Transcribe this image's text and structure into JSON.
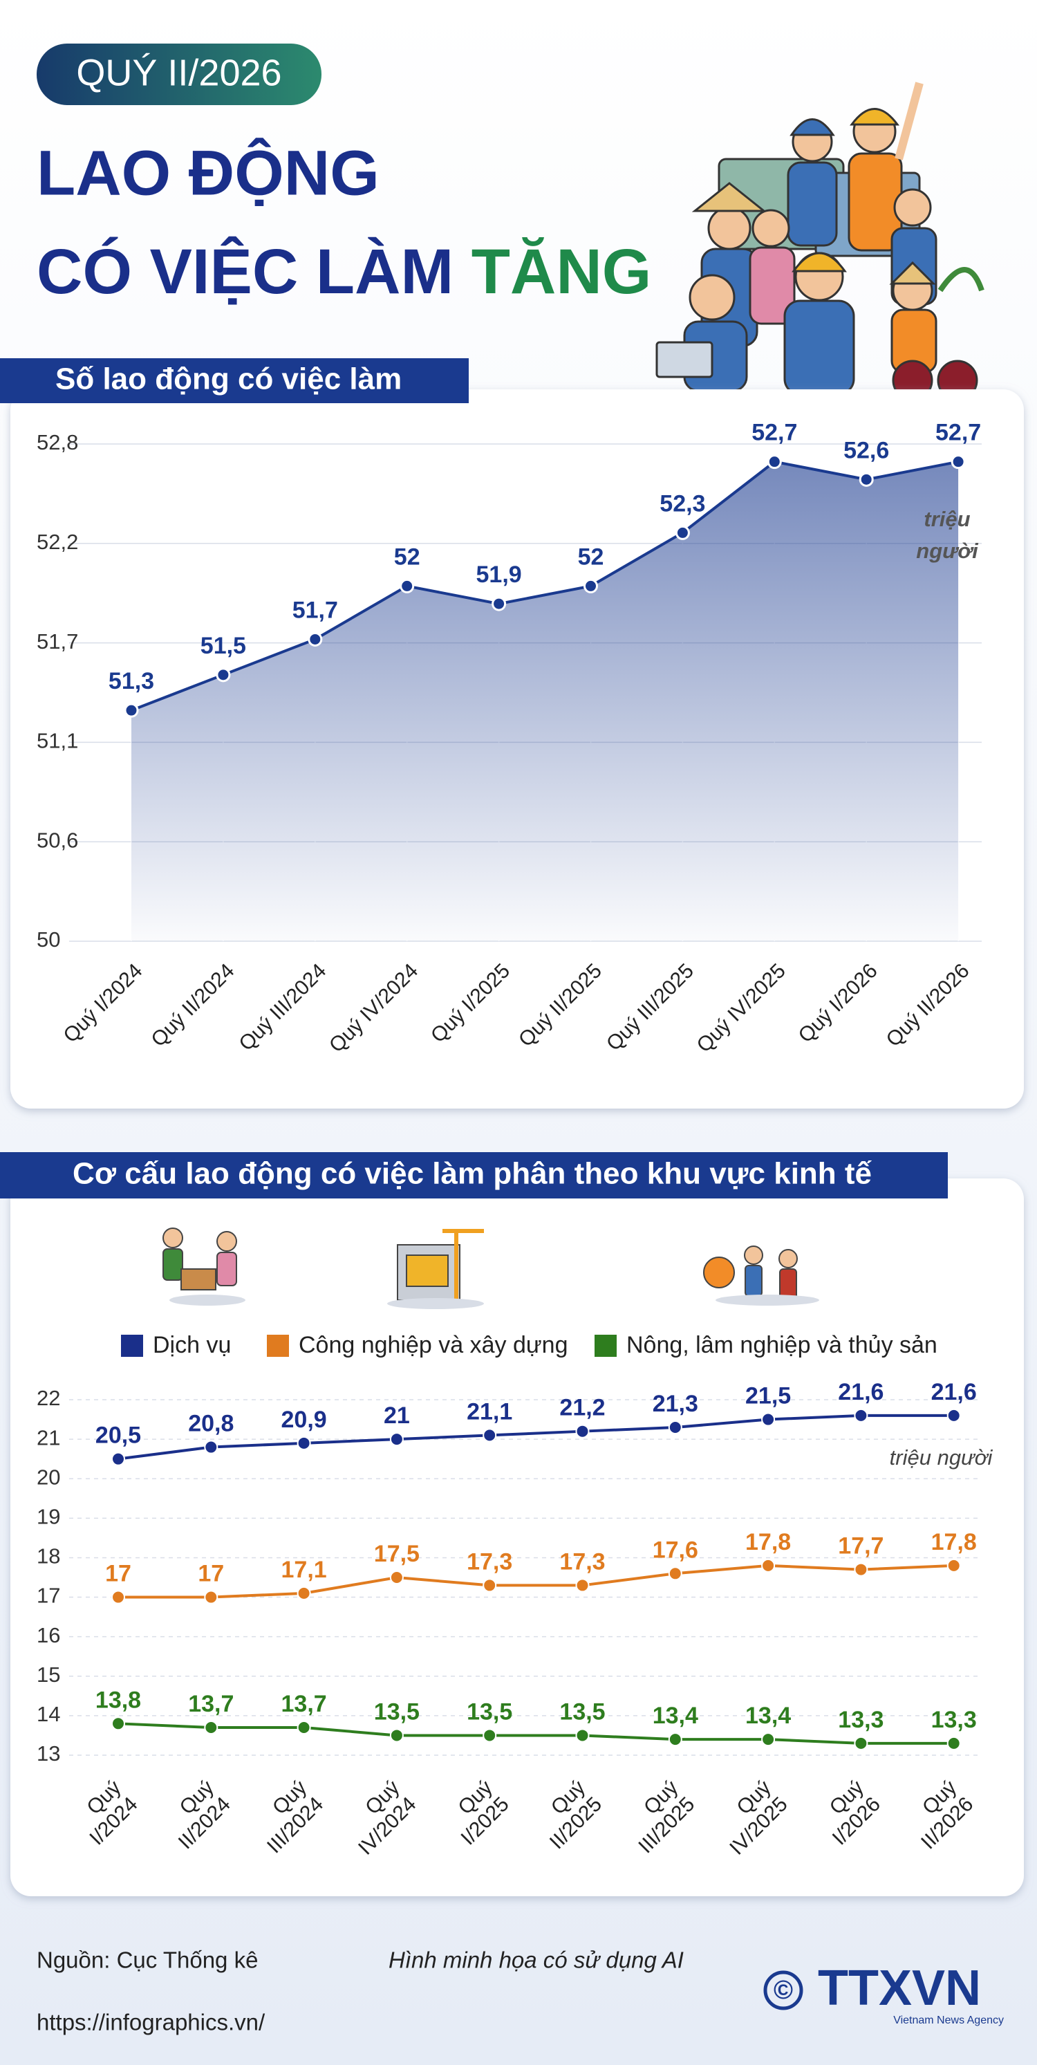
{
  "header": {
    "badge": "QUÝ II/2026",
    "title_line1": "LAO ĐỘNG",
    "title_line2": "CÓ VIỆC LÀM",
    "title_highlight": "TĂNG"
  },
  "chart_data": [
    {
      "type": "area",
      "title": "Số lao động có việc làm",
      "unit": "triệu người",
      "categories": [
        "Quý I/2024",
        "Quý II/2024",
        "Quý III/2024",
        "Quý IV/2024",
        "Quý I/2025",
        "Quý II/2025",
        "Quý III/2025",
        "Quý IV/2025",
        "Quý I/2026",
        "Quý II/2026"
      ],
      "values": [
        51.3,
        51.5,
        51.7,
        52,
        51.9,
        52,
        52.3,
        52.7,
        52.6,
        52.7
      ],
      "value_labels": [
        "51,3",
        "51,5",
        "51,7",
        "52",
        "51,9",
        "52",
        "52,3",
        "52,7",
        "52,6",
        "52,7"
      ],
      "color": "#1a3a8f",
      "ylim": [
        50,
        52.8
      ],
      "yticks": [
        50,
        {
          "value": 50.56,
          "label": "50,6"
        },
        {
          "value": 51.12,
          "label": "51,1"
        },
        {
          "value": 51.68,
          "label": "51,7"
        },
        {
          "value": 52.24,
          "label": "52,2"
        },
        {
          "value": 52.8,
          "label": "52,8"
        }
      ],
      "grid": true
    },
    {
      "type": "line",
      "title": "Cơ cấu lao động có việc làm phân theo khu vực kinh tế",
      "unit": "triệu người",
      "categories": [
        "Quý I/2024",
        "Quý II/2024",
        "Quý III/2024",
        "Quý IV/2024",
        "Quý I/2025",
        "Quý II/2025",
        "Quý III/2025",
        "Quý IV/2025",
        "Quý I/2026",
        "Quý II/2026"
      ],
      "series": [
        {
          "name": "Dịch vụ",
          "color": "#1a2f8a",
          "values": [
            20.5,
            20.8,
            20.9,
            21,
            21.1,
            21.2,
            21.3,
            21.5,
            21.6,
            21.6
          ],
          "value_labels": [
            "20,5",
            "20,8",
            "20,9",
            "21",
            "21,1",
            "21,2",
            "21,3",
            "21,5",
            "21,6",
            "21,6"
          ]
        },
        {
          "name": "Công nghiệp và xây dựng",
          "color": "#e07b1f",
          "values": [
            17,
            17,
            17.1,
            17.5,
            17.3,
            17.3,
            17.6,
            17.8,
            17.7,
            17.8
          ],
          "value_labels": [
            "17",
            "17",
            "17,1",
            "17,5",
            "17,3",
            "17,3",
            "17,6",
            "17,8",
            "17,7",
            "17,8"
          ]
        },
        {
          "name": "Nông, lâm nghiệp và thủy sản",
          "color": "#2e7d1e",
          "values": [
            13.8,
            13.7,
            13.7,
            13.5,
            13.5,
            13.5,
            13.4,
            13.4,
            13.3,
            13.3
          ],
          "value_labels": [
            "13,8",
            "13,7",
            "13,7",
            "13,5",
            "13,5",
            "13,5",
            "13,4",
            "13,4",
            "13,3",
            "13,3"
          ]
        }
      ],
      "ylim": [
        13,
        22
      ],
      "yticks": [
        13,
        14,
        15,
        16,
        17,
        18,
        19,
        20,
        21,
        22
      ],
      "grid": true,
      "legend": "top"
    }
  ],
  "footer": {
    "source": "Nguồn: Cục Thống kê",
    "note": "Hình minh họa có sử dụng AI",
    "url": "https://infographics.vn/",
    "copyright": "©",
    "logo": "TTXVN",
    "logo_sub": "Vietnam News Agency"
  }
}
